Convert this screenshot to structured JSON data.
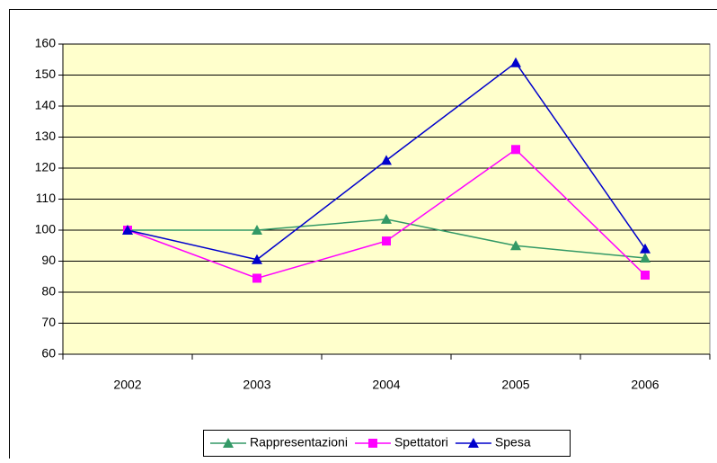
{
  "chart_data": {
    "type": "line",
    "categories": [
      "2002",
      "2003",
      "2004",
      "2005",
      "2006"
    ],
    "series": [
      {
        "name": "Rappresentazioni",
        "color": "#339966",
        "marker": "triangle",
        "values": [
          100,
          100,
          103.5,
          95,
          91
        ]
      },
      {
        "name": "Spettatori",
        "color": "#ff00ff",
        "marker": "square",
        "values": [
          100,
          84.5,
          96.5,
          126,
          85.5
        ]
      },
      {
        "name": "Spesa",
        "color": "#0000cc",
        "marker": "triangle",
        "values": [
          100,
          90.5,
          122.5,
          154,
          94
        ]
      }
    ],
    "ylim": [
      60,
      160
    ],
    "yticks": [
      60,
      70,
      80,
      90,
      100,
      110,
      120,
      130,
      140,
      150,
      160
    ],
    "grid": true,
    "legend": "bottom",
    "plot_background": "#ffffcc"
  }
}
